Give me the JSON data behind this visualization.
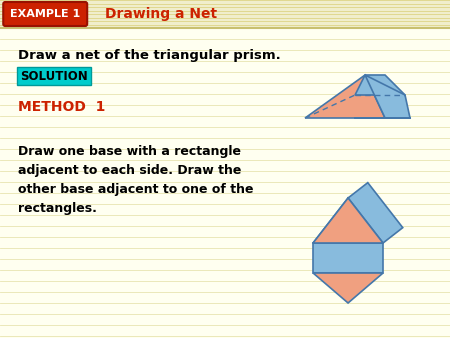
{
  "bg_color": "#fffff0",
  "header_bg": "#f5f0c8",
  "header_stripe_color": "#e8e0a0",
  "example_badge_bg": "#cc2200",
  "example_badge_text": "EXAMPLE 1",
  "example_badge_text_color": "#ffffff",
  "title_text": "Drawing a Net",
  "title_color": "#cc2200",
  "body_text1": "Draw a net of the triangular prism.",
  "solution_bg": "#00cccc",
  "solution_text": "SOLUTION",
  "solution_text_color": "#000000",
  "method_text": "METHOD  1",
  "method_color": "#cc2200",
  "body_text2": "Draw one base with a rectangle\nadjacent to each side. Draw the\nother base adjacent to one of the\nrectangles.",
  "salmon_color": "#f0a080",
  "blue_color": "#88bbdd",
  "outline_color": "#4477aa"
}
